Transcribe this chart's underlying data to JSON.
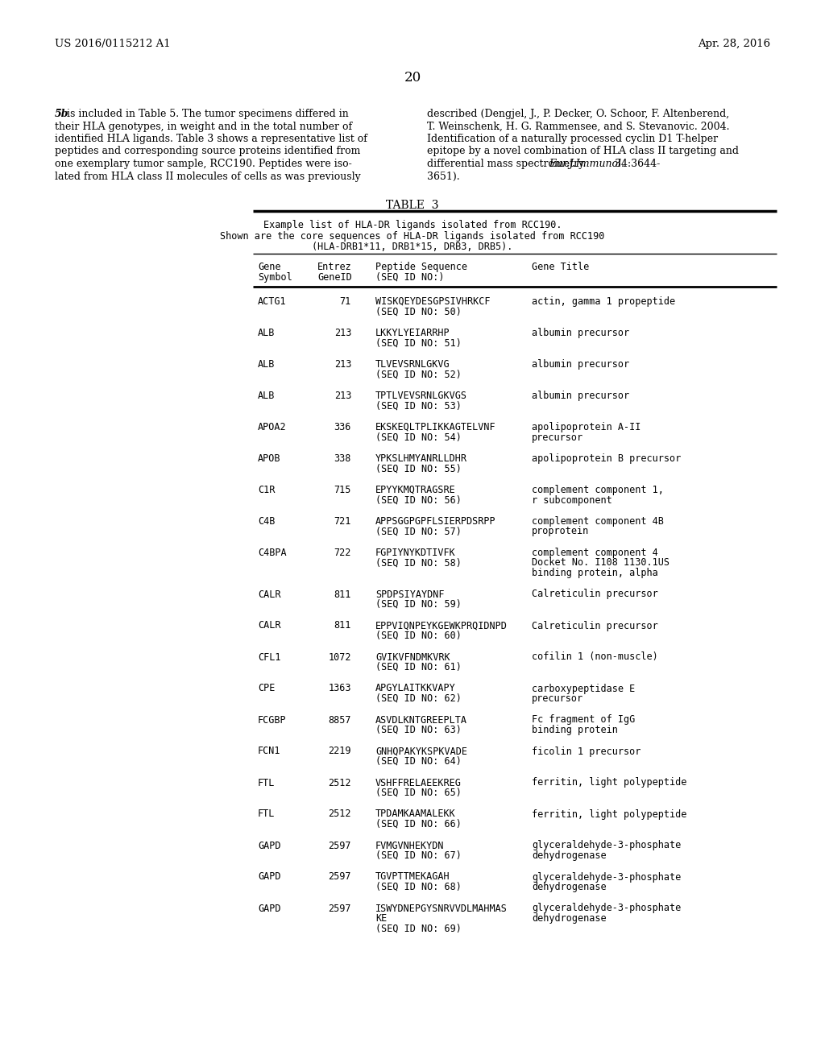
{
  "bg_color": "#ffffff",
  "header_left": "US 2016/0115212 A1",
  "header_right": "Apr. 28, 2016",
  "page_number": "20",
  "table_title": "TABLE  3",
  "table_caption": [
    "Example list of HLA-DR ligands isolated from RCC190.",
    "Shown are the core sequences of HLA-DR ligands isolated from RCC190",
    "(HLA-DRB1*11, DRB1*15, DRB3, DRB5)."
  ],
  "rows": [
    {
      "sym": "ACTG1",
      "id": "71",
      "pep": [
        "WISKQEYDESGPSIVHRKCF",
        "(SEQ ID NO: 50)"
      ],
      "title": [
        "actin, gamma 1 propeptide"
      ]
    },
    {
      "sym": "ALB",
      "id": "213",
      "pep": [
        "LKKYLYEIARRHP",
        "(SEQ ID NO: 51)"
      ],
      "title": [
        "albumin precursor"
      ]
    },
    {
      "sym": "ALB",
      "id": "213",
      "pep": [
        "TLVEVSRNLGKVG",
        "(SEQ ID NO: 52)"
      ],
      "title": [
        "albumin precursor"
      ]
    },
    {
      "sym": "ALB",
      "id": "213",
      "pep": [
        "TPTLVEVSRNLGKVGS",
        "(SEQ ID NO: 53)"
      ],
      "title": [
        "albumin precursor"
      ]
    },
    {
      "sym": "APOA2",
      "id": "336",
      "pep": [
        "EKSKEQLTPLIKKAGTELVNF",
        "(SEQ ID NO: 54)"
      ],
      "title": [
        "apolipoprotein A-II",
        "precursor"
      ]
    },
    {
      "sym": "APOB",
      "id": "338",
      "pep": [
        "YPKSLHMYANRLLDHR",
        "(SEQ ID NO: 55)"
      ],
      "title": [
        "apolipoprotein B precursor"
      ]
    },
    {
      "sym": "C1R",
      "id": "715",
      "pep": [
        "EPYYKMQTRAGSRE",
        "(SEQ ID NO: 56)"
      ],
      "title": [
        "complement component 1,",
        "r subcomponent"
      ]
    },
    {
      "sym": "C4B",
      "id": "721",
      "pep": [
        "APPSGGPGPFLSIERPDSRPP",
        "(SEQ ID NO: 57)"
      ],
      "title": [
        "complement component 4B",
        "proprotein"
      ]
    },
    {
      "sym": "C4BPA",
      "id": "722",
      "pep": [
        "FGPIYNYKDTIVFK",
        "(SEQ ID NO: 58)"
      ],
      "title": [
        "complement component 4",
        "Docket No. I108 1130.1US",
        "binding protein, alpha"
      ]
    },
    {
      "sym": "CALR",
      "id": "811",
      "pep": [
        "SPDPSIYAYDNF",
        "(SEQ ID NO: 59)"
      ],
      "title": [
        "Calreticulin precursor"
      ]
    },
    {
      "sym": "CALR",
      "id": "811",
      "pep": [
        "EPPVIQNPEYKGEWKPRQIDNPD",
        "(SEQ ID NO: 60)"
      ],
      "title": [
        "Calreticulin precursor"
      ]
    },
    {
      "sym": "CFL1",
      "id": "1072",
      "pep": [
        "GVIKVFNDMKVRK",
        "(SEQ ID NO: 61)"
      ],
      "title": [
        "cofilin 1 (non-muscle)"
      ]
    },
    {
      "sym": "CPE",
      "id": "1363",
      "pep": [
        "APGYLAITKKVAPY",
        "(SEQ ID NO: 62)"
      ],
      "title": [
        "carboxypeptidase E",
        "precursor"
      ]
    },
    {
      "sym": "FCGBP",
      "id": "8857",
      "pep": [
        "ASVDLKNTGREEPLTA",
        "(SEQ ID NO: 63)"
      ],
      "title": [
        "Fc fragment of IgG",
        "binding protein"
      ]
    },
    {
      "sym": "FCN1",
      "id": "2219",
      "pep": [
        "GNHQPAKYKSPKVADE",
        "(SEQ ID NO: 64)"
      ],
      "title": [
        "ficolin 1 precursor"
      ]
    },
    {
      "sym": "FTL",
      "id": "2512",
      "pep": [
        "VSHFFRELAEEKREG",
        "(SEQ ID NO: 65)"
      ],
      "title": [
        "ferritin, light polypeptide"
      ]
    },
    {
      "sym": "FTL",
      "id": "2512",
      "pep": [
        "TPDAMKAAMALEKK",
        "(SEQ ID NO: 66)"
      ],
      "title": [
        "ferritin, light polypeptide"
      ]
    },
    {
      "sym": "GAPD",
      "id": "2597",
      "pep": [
        "FVMGVNHEKYDΝ",
        "(SEQ ID NO: 67)"
      ],
      "title": [
        "glyceraldehyde-3-phosphate",
        "dehydrogenase"
      ]
    },
    {
      "sym": "GAPD",
      "id": "2597",
      "pep": [
        "TGVPTTMEKAGAH",
        "(SEQ ID NO: 68)"
      ],
      "title": [
        "glyceraldehyde-3-phosphate",
        "dehydrogenase"
      ]
    },
    {
      "sym": "GAPD",
      "id": "2597",
      "pep": [
        "ISWYDNEPGYSNRVVDLMAHMAS",
        "KE",
        "(SEQ ID NO: 69)"
      ],
      "title": [
        "glyceraldehyde-3-phosphate",
        "dehydrogenase"
      ]
    }
  ]
}
